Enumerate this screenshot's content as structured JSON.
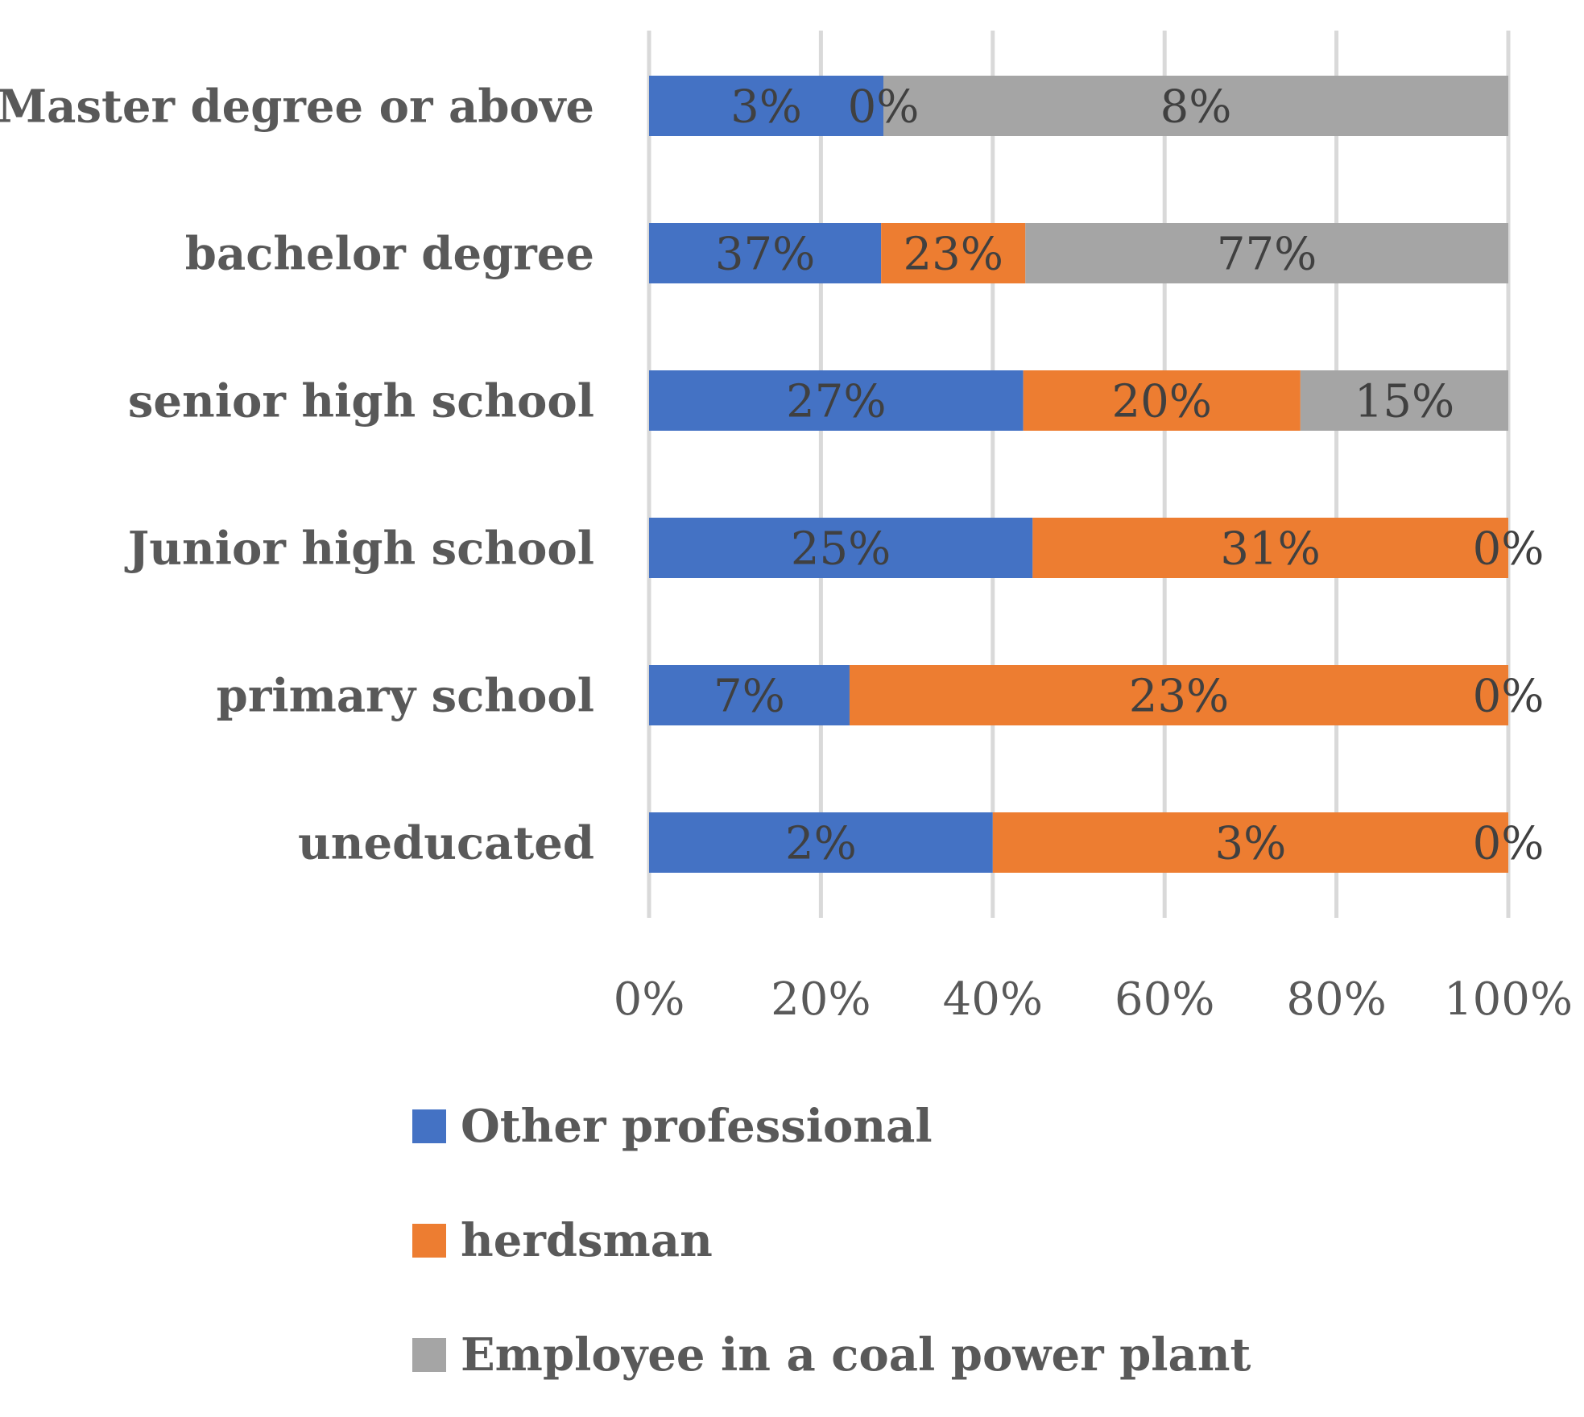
{
  "chart_data": {
    "type": "bar",
    "orientation": "horizontal",
    "stacked": "100%",
    "title": "",
    "xlabel": "",
    "ylabel": "",
    "xlim": [
      0,
      100
    ],
    "grid": true,
    "legend_position": "bottom",
    "x_ticks": [
      "0%",
      "20%",
      "40%",
      "60%",
      "80%",
      "100%"
    ],
    "categories": [
      "Master degree or above",
      "bachelor degree",
      "senior high school",
      "Junior high school",
      "primary school",
      "uneducated"
    ],
    "series": [
      {
        "name": "Other professional",
        "color": "#4472C4",
        "values": [
          3,
          37,
          27,
          25,
          7,
          2
        ],
        "labels": [
          "3%",
          "37%",
          "27%",
          "25%",
          "7%",
          "2%"
        ]
      },
      {
        "name": "herdsman",
        "color": "#ED7D31",
        "values": [
          0,
          23,
          20,
          31,
          23,
          3
        ],
        "labels": [
          "0%",
          "23%",
          "20%",
          "31%",
          "23%",
          "3%"
        ]
      },
      {
        "name": "Employee in a coal power plant",
        "color": "#A5A5A5",
        "values": [
          8,
          77,
          15,
          0,
          0,
          0
        ],
        "labels": [
          "8%",
          "77%",
          "15%",
          "0%",
          "0%",
          "0%"
        ]
      }
    ]
  }
}
